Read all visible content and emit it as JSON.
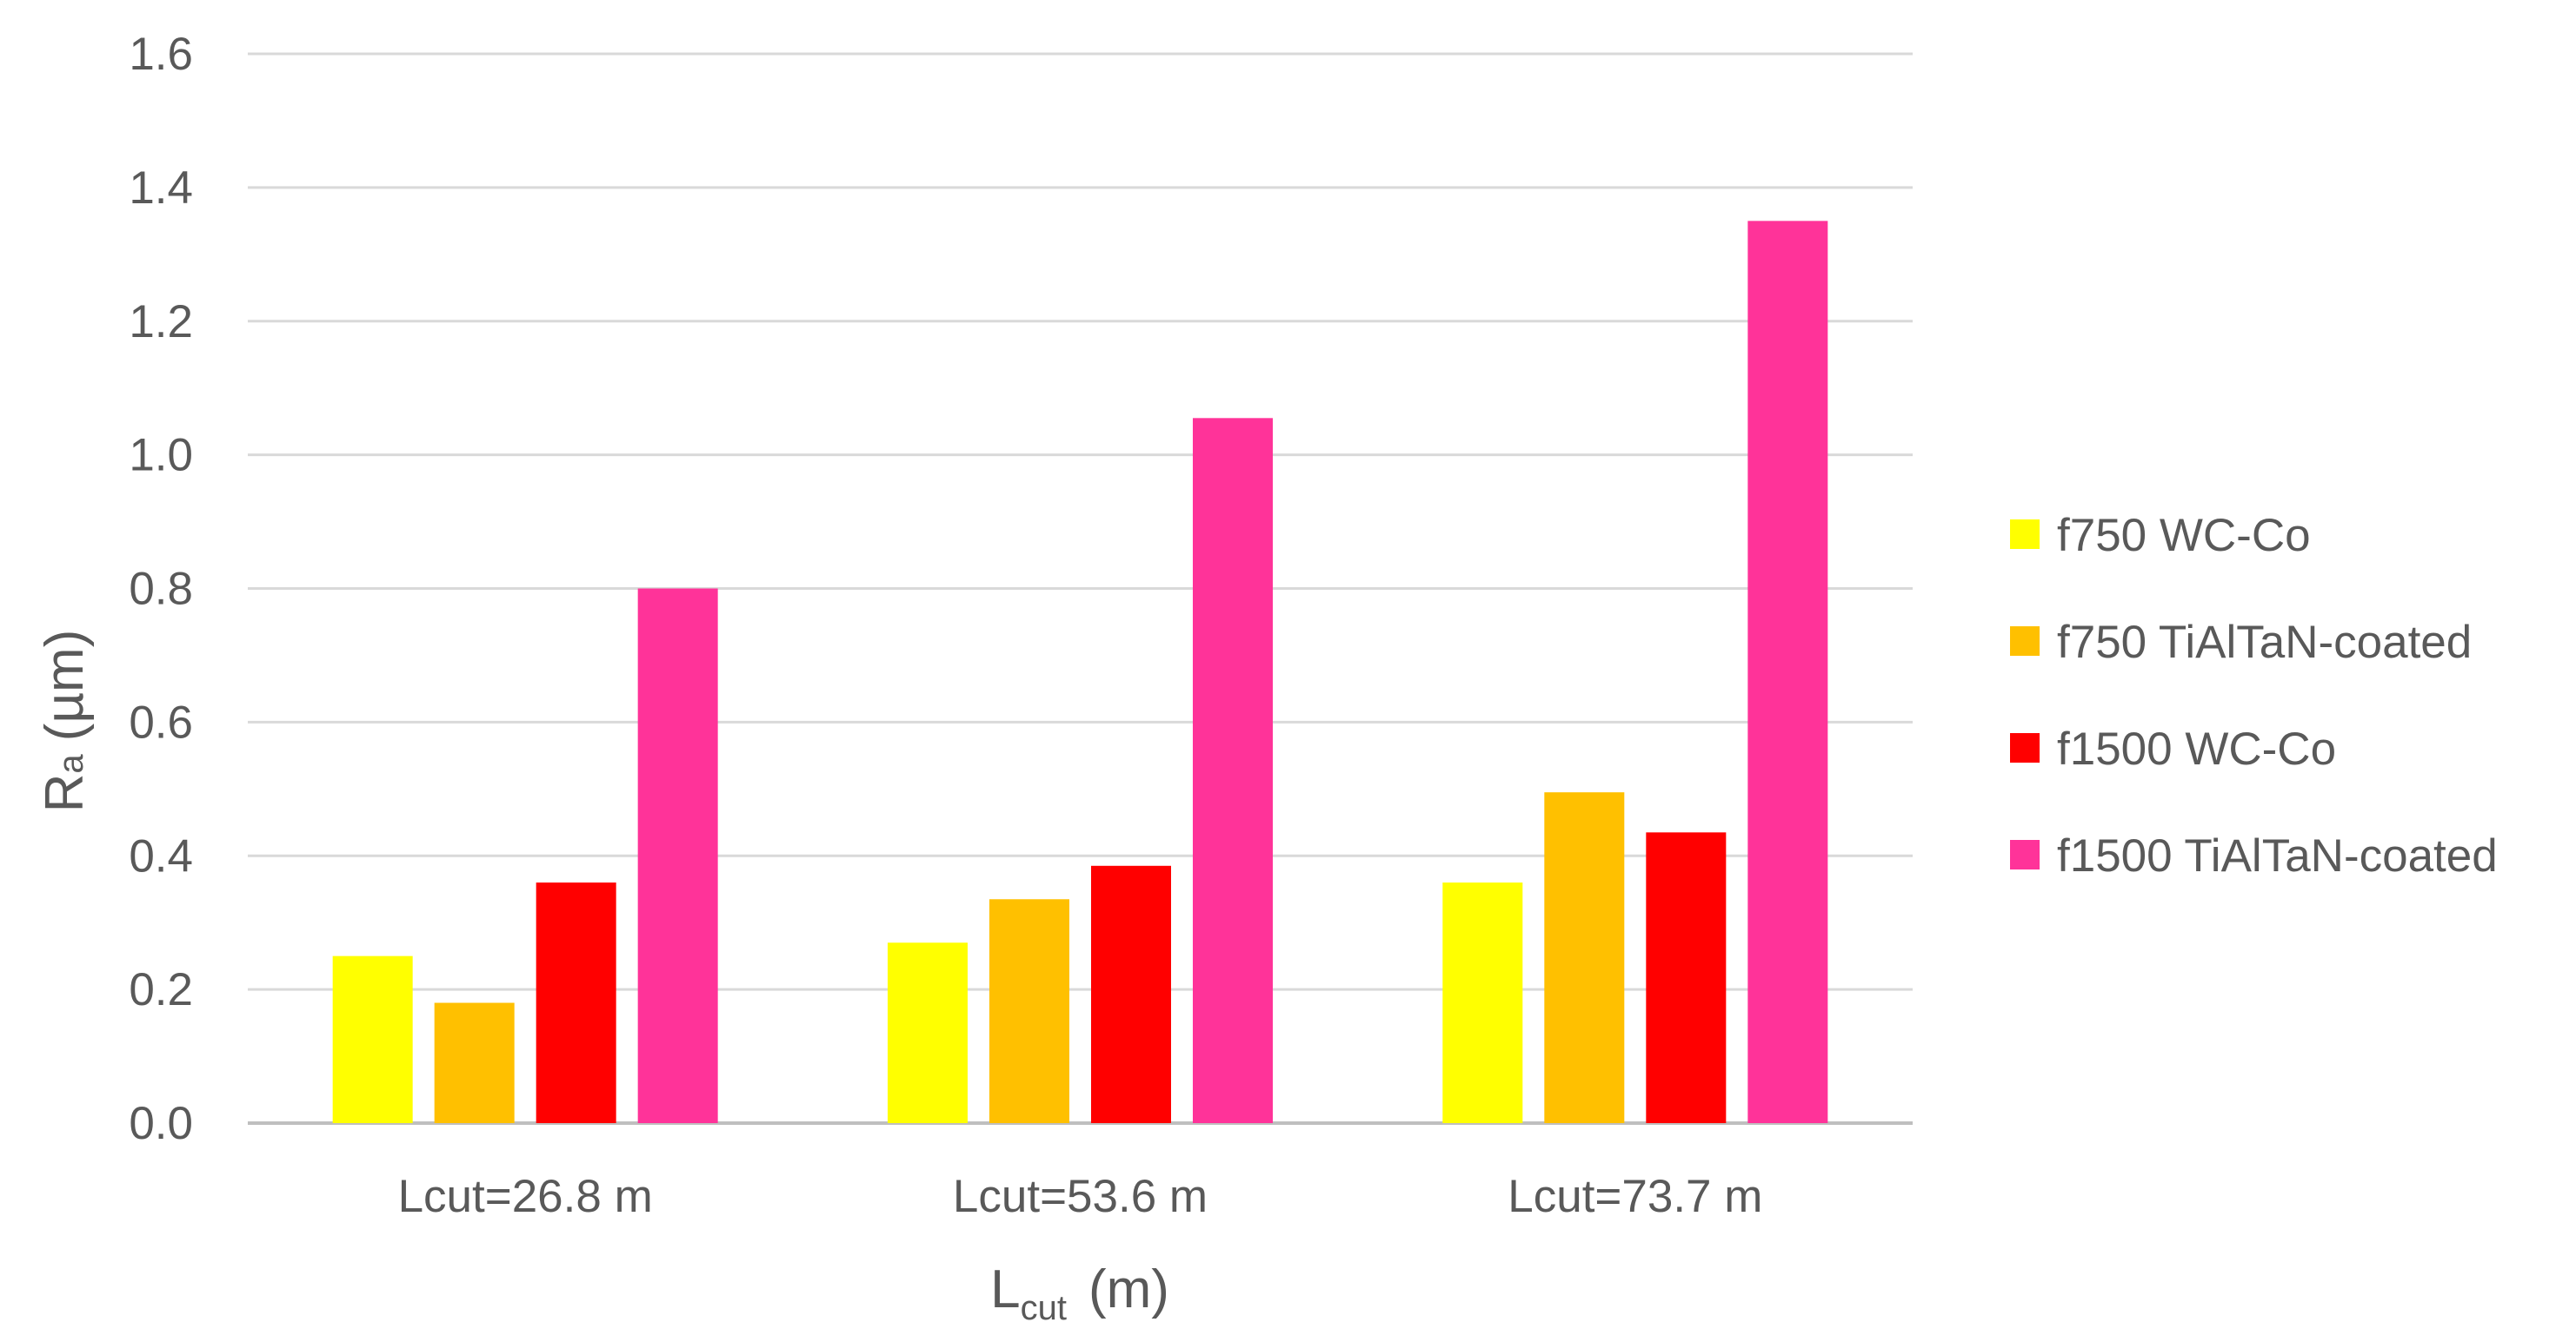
{
  "chart_data": {
    "type": "bar",
    "title": "",
    "xlabel": {
      "main": "L",
      "sub": "cut",
      "unit": "(m)"
    },
    "ylabel": {
      "main": "R",
      "sub": "a",
      "unit": "(µm)"
    },
    "ylim": [
      0,
      1.6
    ],
    "yticks": [
      "0.0",
      "0.2",
      "0.4",
      "0.6",
      "0.8",
      "1.0",
      "1.2",
      "1.4",
      "1.6"
    ],
    "grid": true,
    "legend_position": "right",
    "categories": [
      "Lcut=26.8 m",
      "Lcut=53.6 m",
      "Lcut=73.7 m"
    ],
    "series": [
      {
        "name": "f750 WC-Co",
        "color": "#FFFF00",
        "values": [
          0.25,
          0.27,
          0.36
        ]
      },
      {
        "name": "f750 TiAlTaN-coated",
        "color": "#FFC000",
        "values": [
          0.18,
          0.335,
          0.495
        ]
      },
      {
        "name": "f1500 WC-Co",
        "color": "#FF0000",
        "values": [
          0.36,
          0.385,
          0.435
        ]
      },
      {
        "name": "f1500 TiAlTaN-coated",
        "color": "#FF3399",
        "values": [
          0.8,
          1.055,
          1.35
        ]
      }
    ]
  }
}
